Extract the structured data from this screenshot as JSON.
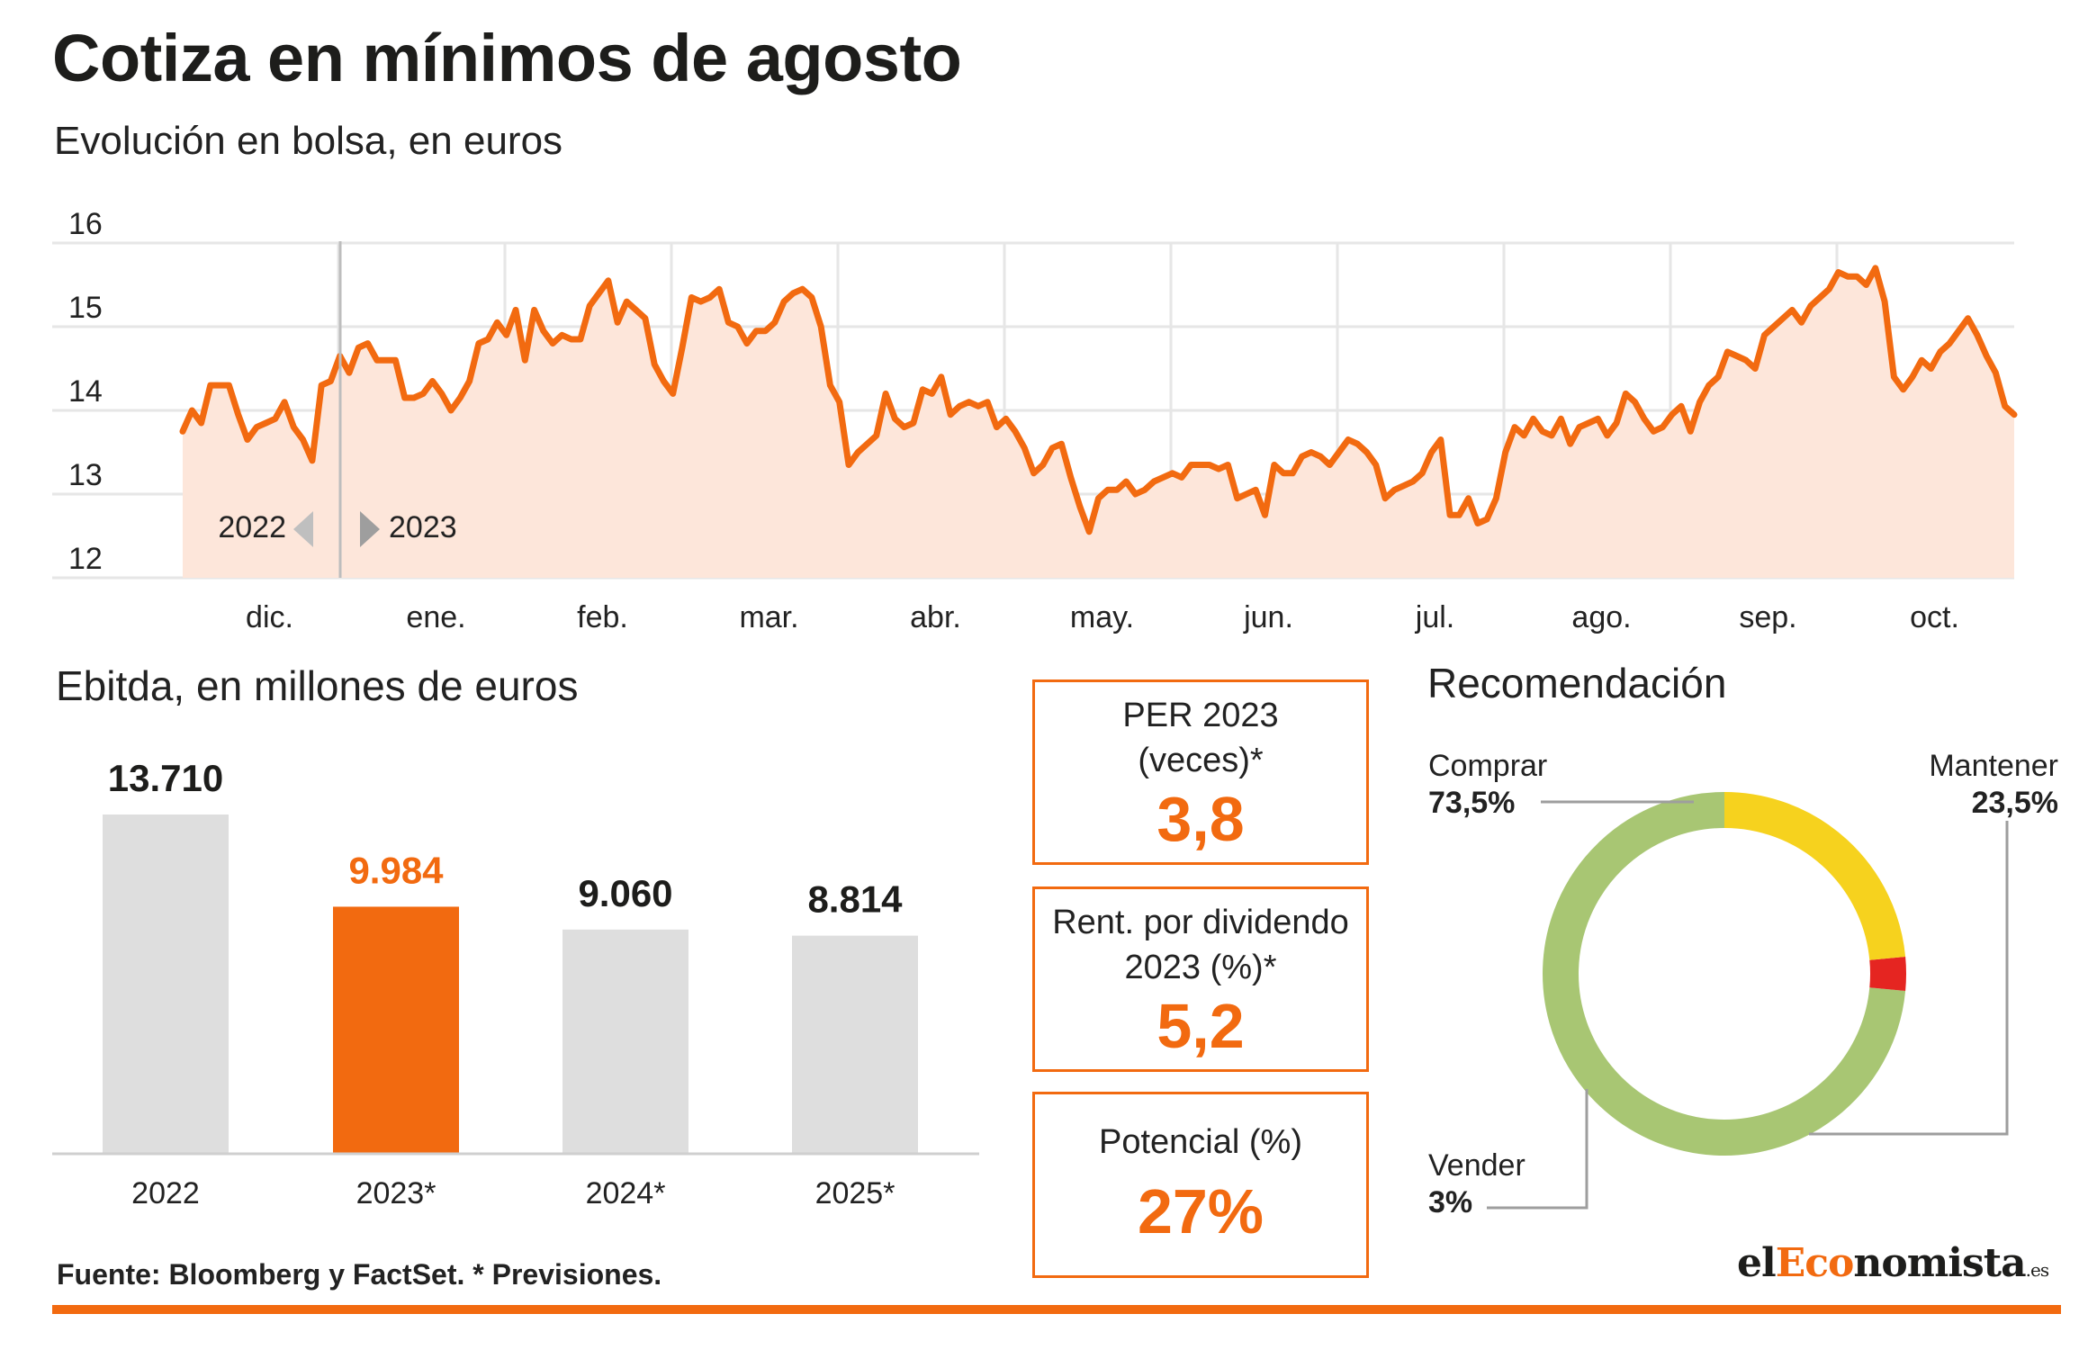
{
  "title": "Cotiza en mínimos de agosto",
  "subtitle": "Evolución en bolsa, en euros",
  "colors": {
    "accent": "#f26a10",
    "line": "#f26a10",
    "area": "#fde6da",
    "bar_grey": "#dedede",
    "grid": "#e6e6e6",
    "comprar": "#a8c673",
    "mantener": "#f6d21e",
    "vender": "#e52521"
  },
  "chart_data": [
    {
      "type": "area",
      "title": "Cotiza en mínimos de agosto",
      "subtitle": "Evolución en bolsa, en euros",
      "ylim": [
        12,
        16
      ],
      "yticks": [
        "16",
        "15",
        "14",
        "13",
        "12"
      ],
      "grid": true,
      "months": [
        "dic.",
        "ene.",
        "feb.",
        "mar.",
        "abr.",
        "may.",
        "jun.",
        "jul.",
        "ago.",
        "sep.",
        "oct."
      ],
      "year_labels": {
        "left": "2022",
        "right": "2023"
      },
      "series": [
        {
          "values": [
            13.75,
            14.0,
            13.85,
            14.3,
            14.3,
            14.3,
            13.95,
            13.65,
            13.8,
            13.85,
            13.9,
            14.1,
            13.8,
            13.65,
            13.4,
            14.3,
            14.35,
            14.65,
            14.45,
            14.75,
            14.8,
            14.6,
            14.6,
            14.6,
            14.15,
            14.15,
            14.2,
            14.35,
            14.2,
            14.0,
            14.15,
            14.35,
            14.8,
            14.85,
            15.05,
            14.9,
            15.2,
            14.6,
            15.2,
            14.95,
            14.8,
            14.9,
            14.85,
            14.85,
            15.25,
            15.4,
            15.55,
            15.05,
            15.3,
            15.2,
            15.1,
            14.55,
            14.35,
            14.2,
            14.75,
            15.35,
            15.3,
            15.35,
            15.45,
            15.05,
            15.0,
            14.8,
            14.95,
            14.95,
            15.05,
            15.3,
            15.4,
            15.45,
            15.35,
            15.0,
            14.3,
            14.1,
            13.35,
            13.5,
            13.6,
            13.7,
            14.2,
            13.9,
            13.8,
            13.85,
            14.25,
            14.2,
            14.4,
            13.95,
            14.05,
            14.1,
            14.05,
            14.1,
            13.8,
            13.9,
            13.75,
            13.55,
            13.25,
            13.35,
            13.55,
            13.6,
            13.2,
            12.85,
            12.55,
            12.95,
            13.05,
            13.05,
            13.15,
            13.0,
            13.05,
            13.15,
            13.2,
            13.25,
            13.2,
            13.35,
            13.35,
            13.35,
            13.3,
            13.35,
            12.95,
            13.0,
            13.05,
            12.75,
            13.35,
            13.25,
            13.25,
            13.45,
            13.5,
            13.45,
            13.35,
            13.5,
            13.65,
            13.6,
            13.5,
            13.35,
            12.95,
            13.05,
            13.1,
            13.15,
            13.25,
            13.5,
            13.65,
            12.75,
            12.75,
            12.95,
            12.65,
            12.7,
            12.95,
            13.5,
            13.8,
            13.7,
            13.9,
            13.75,
            13.7,
            13.9,
            13.6,
            13.8,
            13.85,
            13.9,
            13.7,
            13.85,
            14.2,
            14.1,
            13.9,
            13.75,
            13.8,
            13.95,
            14.05,
            13.75,
            14.1,
            14.3,
            14.4,
            14.7,
            14.65,
            14.6,
            14.5,
            14.9,
            15.0,
            15.1,
            15.2,
            15.05,
            15.25,
            15.35,
            15.45,
            15.65,
            15.6,
            15.6,
            15.5,
            15.7,
            15.3,
            14.4,
            14.25,
            14.4,
            14.6,
            14.5,
            14.7,
            14.8,
            14.95,
            15.1,
            14.9,
            14.65,
            14.45,
            14.05,
            13.95
          ]
        }
      ]
    },
    {
      "type": "bar",
      "title": "Ebitda, en millones de euros",
      "categories": [
        "2022",
        "2023*",
        "2024*",
        "2025*"
      ],
      "values": [
        13710,
        9984,
        9060,
        8814
      ],
      "value_labels": [
        "13.710",
        "9.984",
        "9.060",
        "8.814"
      ],
      "highlight_index": 1
    },
    {
      "type": "pie",
      "title": "Recomendación",
      "slices": [
        {
          "label": "Comprar",
          "value": 73.5,
          "value_label": "73,5%",
          "color": "#a8c673"
        },
        {
          "label": "Mantener",
          "value": 23.5,
          "value_label": "23,5%",
          "color": "#f6d21e"
        },
        {
          "label": "Vender",
          "value": 3,
          "value_label": "3%",
          "color": "#e52521"
        }
      ]
    }
  ],
  "kpis": [
    {
      "label_line1": "PER 2023",
      "label_line2": "(veces)*",
      "value": "3,8"
    },
    {
      "label_line1": "Rent. por dividendo",
      "label_line2": "2023 (%)*",
      "value": "5,2"
    },
    {
      "label_line1": "Potencial (%)",
      "label_line2": "",
      "value": "27%"
    }
  ],
  "source": "Fuente: Bloomberg y FactSet. * Previsiones.",
  "brand": {
    "prefix": "el",
    "highlight": "Eco",
    "suffix": "nomista",
    "tld": ".es"
  }
}
